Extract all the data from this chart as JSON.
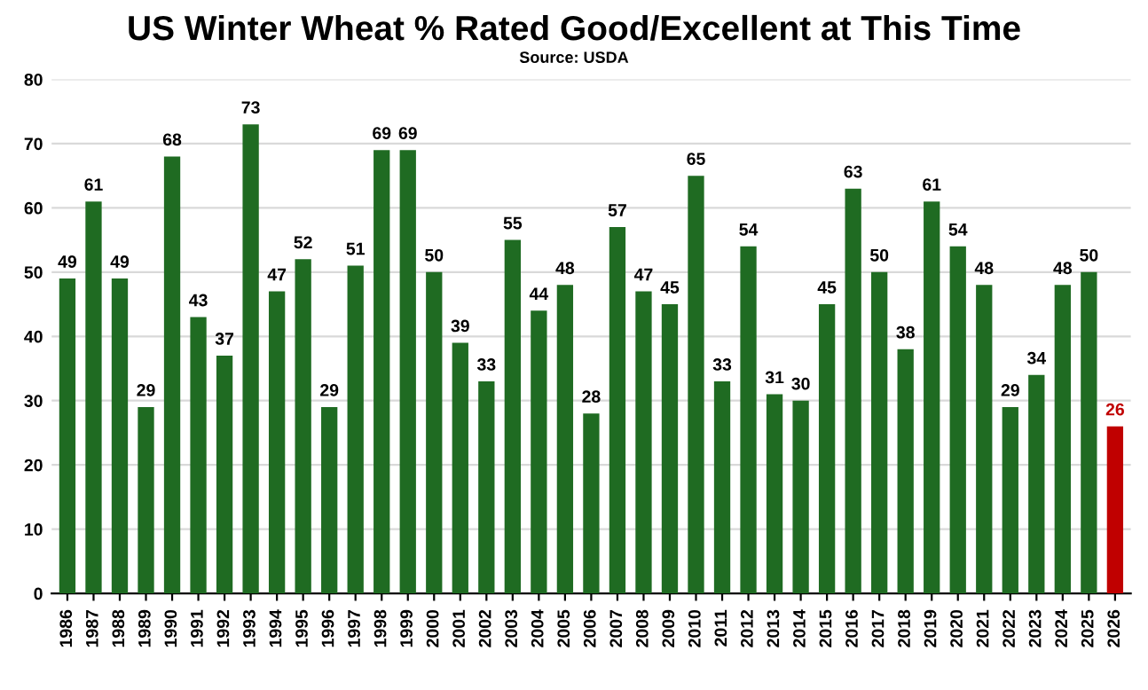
{
  "chart_data": {
    "type": "bar",
    "title": "US Winter Wheat % Rated Good/Excellent at This Time",
    "subtitle": "Source: USDA",
    "categories": [
      "1986",
      "1987",
      "1988",
      "1989",
      "1990",
      "1991",
      "1992",
      "1993",
      "1994",
      "1995",
      "1996",
      "1997",
      "1998",
      "1999",
      "2000",
      "2001",
      "2002",
      "2003",
      "2004",
      "2005",
      "2006",
      "2007",
      "2008",
      "2009",
      "2010",
      "2011",
      "2012",
      "2013",
      "2014",
      "2015",
      "2016",
      "2017",
      "2018",
      "2019",
      "2020",
      "2021",
      "2022",
      "2023",
      "2024",
      "2025",
      "2026"
    ],
    "values": [
      49,
      61,
      49,
      29,
      68,
      43,
      37,
      73,
      47,
      52,
      29,
      51,
      69,
      69,
      50,
      39,
      33,
      55,
      44,
      48,
      28,
      57,
      47,
      45,
      65,
      33,
      54,
      31,
      30,
      45,
      63,
      50,
      38,
      61,
      54,
      48,
      29,
      34,
      48,
      50,
      26
    ],
    "colors": [
      "#1f6b22",
      "#1f6b22",
      "#1f6b22",
      "#1f6b22",
      "#1f6b22",
      "#1f6b22",
      "#1f6b22",
      "#1f6b22",
      "#1f6b22",
      "#1f6b22",
      "#1f6b22",
      "#1f6b22",
      "#1f6b22",
      "#1f6b22",
      "#1f6b22",
      "#1f6b22",
      "#1f6b22",
      "#1f6b22",
      "#1f6b22",
      "#1f6b22",
      "#1f6b22",
      "#1f6b22",
      "#1f6b22",
      "#1f6b22",
      "#1f6b22",
      "#1f6b22",
      "#1f6b22",
      "#1f6b22",
      "#1f6b22",
      "#1f6b22",
      "#1f6b22",
      "#1f6b22",
      "#1f6b22",
      "#1f6b22",
      "#1f6b22",
      "#1f6b22",
      "#1f6b22",
      "#1f6b22",
      "#1f6b22",
      "#1f6b22",
      "#c00000"
    ],
    "ylim": [
      0,
      80
    ],
    "yticks": [
      0,
      10,
      20,
      30,
      40,
      50,
      60,
      70,
      80
    ],
    "grid": "y",
    "data_labels": true
  }
}
